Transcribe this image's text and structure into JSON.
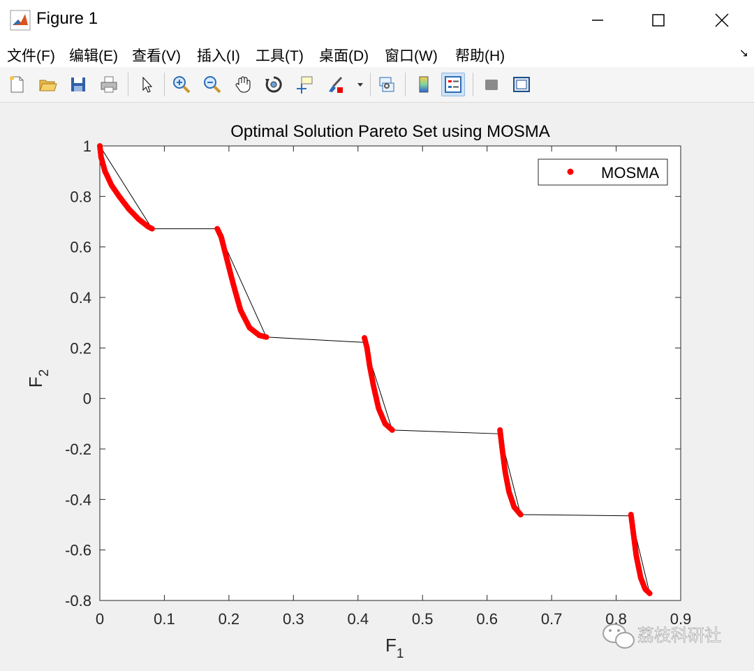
{
  "window": {
    "title": "Figure 1",
    "minimize_icon": "minimize-icon",
    "maximize_icon": "maximize-icon",
    "close_icon": "close-icon"
  },
  "menu": {
    "items": [
      "文件(F)",
      "编辑(E)",
      "查看(V)",
      "插入(I)",
      "工具(T)",
      "桌面(D)",
      "窗口(W)",
      "帮助(H)"
    ],
    "corner_icon": "dock-arrow-icon"
  },
  "toolbar": {
    "buttons": [
      "new-figure-icon",
      "open-file-icon",
      "save-icon",
      "print-icon",
      "edit-plot-cursor-icon",
      "zoom-in-icon",
      "zoom-out-icon",
      "pan-hand-icon",
      "rotate-3d-icon",
      "data-cursor-icon",
      "brush-icon",
      "link-plot-icon",
      "colorbar-icon",
      "legend-icon",
      "hide-plot-tools-icon",
      "show-plot-tools-icon"
    ],
    "active": "legend-icon"
  },
  "watermark": "荔枝科研社",
  "chart_data": {
    "type": "scatter",
    "title": "Optimal Solution Pareto Set using MOSMA",
    "xlabel": "F",
    "xlabel_sub": "1",
    "ylabel": "F",
    "ylabel_sub": "2",
    "xlim": [
      0,
      0.9
    ],
    "ylim": [
      -0.8,
      1
    ],
    "xticks": [
      "0",
      "0.1",
      "0.2",
      "0.3",
      "0.4",
      "0.5",
      "0.6",
      "0.7",
      "0.8",
      "0.9"
    ],
    "yticks": [
      "-0.8",
      "-0.6",
      "-0.4",
      "-0.2",
      "0",
      "0.2",
      "0.4",
      "0.6",
      "0.8",
      "1"
    ],
    "legend": {
      "entries": [
        "MOSMA"
      ],
      "position": "top-right"
    },
    "series": [
      {
        "name": "MOSMA",
        "color": "#ff0000",
        "marker": "dot",
        "segments": [
          [
            [
              0.0,
              1.0
            ],
            [
              0.002,
              0.955
            ],
            [
              0.008,
              0.9
            ],
            [
              0.018,
              0.845
            ],
            [
              0.03,
              0.8
            ],
            [
              0.045,
              0.75
            ],
            [
              0.06,
              0.71
            ],
            [
              0.075,
              0.68
            ],
            [
              0.081,
              0.672
            ]
          ],
          [
            [
              0.182,
              0.672
            ],
            [
              0.188,
              0.64
            ],
            [
              0.196,
              0.56
            ],
            [
              0.207,
              0.45
            ],
            [
              0.218,
              0.35
            ],
            [
              0.232,
              0.28
            ],
            [
              0.247,
              0.25
            ],
            [
              0.258,
              0.243
            ]
          ],
          [
            [
              0.41,
              0.24
            ],
            [
              0.414,
              0.2
            ],
            [
              0.418,
              0.13
            ],
            [
              0.424,
              0.05
            ],
            [
              0.432,
              -0.04
            ],
            [
              0.442,
              -0.1
            ],
            [
              0.453,
              -0.125
            ]
          ],
          [
            [
              0.62,
              -0.125
            ],
            [
              0.623,
              -0.19
            ],
            [
              0.628,
              -0.29
            ],
            [
              0.634,
              -0.37
            ],
            [
              0.642,
              -0.43
            ],
            [
              0.652,
              -0.46
            ]
          ],
          [
            [
              0.823,
              -0.46
            ],
            [
              0.826,
              -0.52
            ],
            [
              0.831,
              -0.62
            ],
            [
              0.838,
              -0.71
            ],
            [
              0.845,
              -0.755
            ],
            [
              0.852,
              -0.772
            ]
          ]
        ]
      },
      {
        "name": "",
        "color": "#000000",
        "type": "line",
        "points": [
          [
            0.0,
            1.0
          ],
          [
            0.081,
            0.672
          ],
          [
            0.182,
            0.672
          ],
          [
            0.258,
            0.243
          ],
          [
            0.41,
            0.222
          ],
          [
            0.453,
            -0.125
          ],
          [
            0.62,
            -0.14
          ],
          [
            0.652,
            -0.46
          ],
          [
            0.823,
            -0.465
          ],
          [
            0.852,
            -0.772
          ]
        ]
      }
    ]
  }
}
